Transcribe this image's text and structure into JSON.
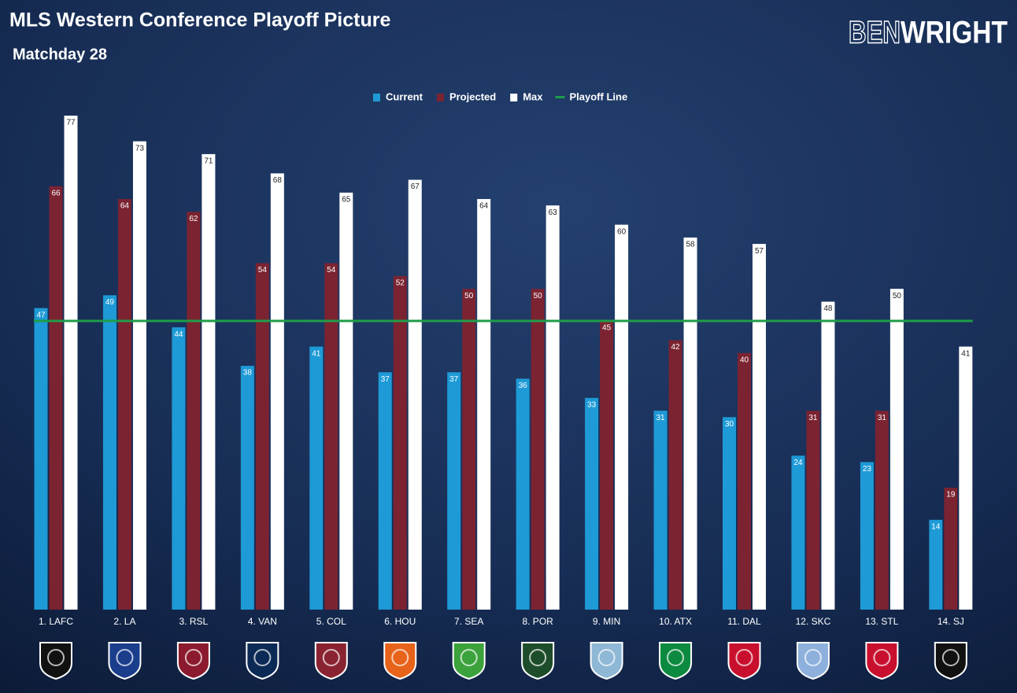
{
  "chart_data": {
    "type": "bar",
    "title": "MLS Western Conference Playoff Picture",
    "subtitle": "Matchday 28",
    "logo_text": [
      "BEN",
      "WRIGHT"
    ],
    "categories": [
      "1. LAFC",
      "2. LA",
      "3. RSL",
      "4. VAN",
      "5. COL",
      "6. HOU",
      "7. SEA",
      "8. POR",
      "9. MIN",
      "10. ATX",
      "11. DAL",
      "12. SKC",
      "13. STL",
      "14. SJ"
    ],
    "series": [
      {
        "name": "Current",
        "color": "#1e9ad6",
        "values": [
          47,
          49,
          44,
          38,
          41,
          37,
          37,
          36,
          33,
          31,
          30,
          24,
          23,
          14
        ]
      },
      {
        "name": "Projected",
        "color": "#7b2331",
        "values": [
          66,
          64,
          62,
          54,
          54,
          52,
          50,
          50,
          45,
          42,
          40,
          31,
          31,
          19
        ]
      },
      {
        "name": "Max",
        "color": "#ffffff",
        "values": [
          77,
          73,
          71,
          68,
          65,
          67,
          64,
          63,
          60,
          58,
          57,
          48,
          50,
          41
        ]
      }
    ],
    "playoff_line": {
      "name": "Playoff Line",
      "color": "#1f9d48",
      "value": 45
    }
  }
}
